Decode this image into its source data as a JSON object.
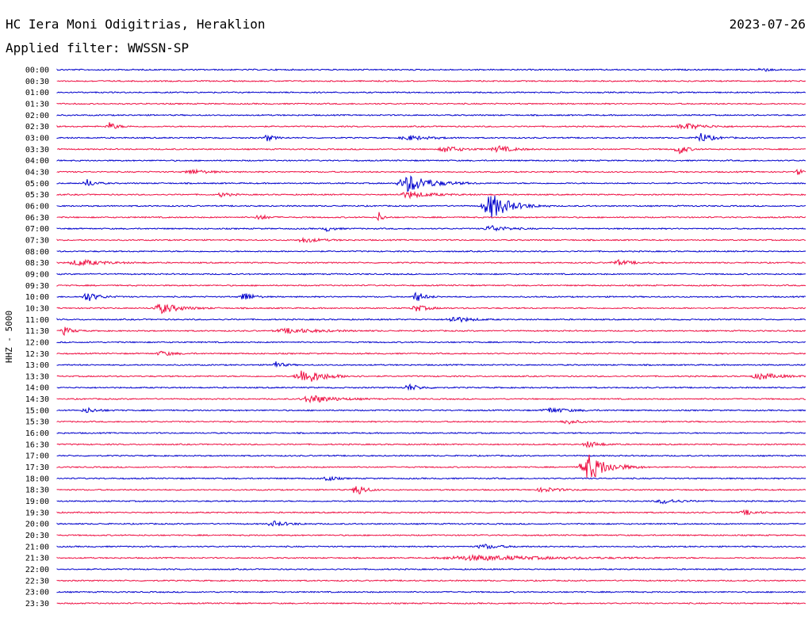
{
  "header": {
    "station": "HC Iera Moni Odigitrias, Heraklion",
    "date": "2023-07-26",
    "filter": "Applied filter: WWSSN-SP"
  },
  "chart_data": {
    "type": "line",
    "title": "HC Iera Moni Odigitrias, Heraklion",
    "subtitle": "Applied filter: WWSSN-SP",
    "ylabel": "HHZ - 5000",
    "colors": {
      "a": "#0000cc",
      "b": "#ee1144"
    },
    "rows": [
      "00:00",
      "00:30",
      "01:00",
      "01:30",
      "02:00",
      "02:30",
      "03:00",
      "03:30",
      "04:00",
      "04:30",
      "05:00",
      "05:30",
      "06:00",
      "06:30",
      "07:00",
      "07:30",
      "08:00",
      "08:30",
      "09:00",
      "09:30",
      "10:00",
      "10:30",
      "11:00",
      "11:30",
      "12:00",
      "12:30",
      "13:00",
      "13:30",
      "14:00",
      "14:30",
      "15:00",
      "15:30",
      "16:00",
      "16:30",
      "17:00",
      "17:30",
      "18:00",
      "18:30",
      "19:00",
      "19:30",
      "20:00",
      "20:30",
      "21:00",
      "21:30",
      "22:00",
      "22:30",
      "23:00",
      "23:30"
    ],
    "events": [
      {
        "row": "00:00",
        "pos": 0.94,
        "amp": 3,
        "dur": 0.02
      },
      {
        "row": "02:30",
        "pos": 0.07,
        "amp": 5,
        "dur": 0.02
      },
      {
        "row": "02:30",
        "pos": 0.84,
        "amp": 4,
        "dur": 0.05
      },
      {
        "row": "03:00",
        "pos": 0.28,
        "amp": 4,
        "dur": 0.02
      },
      {
        "row": "03:00",
        "pos": 0.47,
        "amp": 3,
        "dur": 0.05
      },
      {
        "row": "03:00",
        "pos": 0.86,
        "amp": 6,
        "dur": 0.03
      },
      {
        "row": "03:30",
        "pos": 0.52,
        "amp": 4,
        "dur": 0.04
      },
      {
        "row": "03:30",
        "pos": 0.59,
        "amp": 4,
        "dur": 0.04
      },
      {
        "row": "03:30",
        "pos": 0.83,
        "amp": 7,
        "dur": 0.02
      },
      {
        "row": "04:30",
        "pos": 0.18,
        "amp": 3,
        "dur": 0.04
      },
      {
        "row": "04:30",
        "pos": 0.99,
        "amp": 5,
        "dur": 0.01
      },
      {
        "row": "05:00",
        "pos": 0.04,
        "amp": 5,
        "dur": 0.02
      },
      {
        "row": "05:00",
        "pos": 0.47,
        "amp": 11,
        "dur": 0.06
      },
      {
        "row": "05:30",
        "pos": 0.22,
        "amp": 3,
        "dur": 0.02
      },
      {
        "row": "05:30",
        "pos": 0.47,
        "amp": 4,
        "dur": 0.06
      },
      {
        "row": "06:00",
        "pos": 0.58,
        "amp": 16,
        "dur": 0.05
      },
      {
        "row": "06:30",
        "pos": 0.27,
        "amp": 4,
        "dur": 0.02
      },
      {
        "row": "06:30",
        "pos": 0.43,
        "amp": 7,
        "dur": 0.01
      },
      {
        "row": "07:00",
        "pos": 0.36,
        "amp": 3,
        "dur": 0.02
      },
      {
        "row": "07:00",
        "pos": 0.58,
        "amp": 4,
        "dur": 0.04
      },
      {
        "row": "07:30",
        "pos": 0.33,
        "amp": 3,
        "dur": 0.04
      },
      {
        "row": "08:30",
        "pos": 0.03,
        "amp": 4,
        "dur": 0.06
      },
      {
        "row": "08:30",
        "pos": 0.75,
        "amp": 3,
        "dur": 0.04
      },
      {
        "row": "10:00",
        "pos": 0.04,
        "amp": 6,
        "dur": 0.03
      },
      {
        "row": "10:00",
        "pos": 0.25,
        "amp": 7,
        "dur": 0.02
      },
      {
        "row": "10:00",
        "pos": 0.48,
        "amp": 7,
        "dur": 0.02
      },
      {
        "row": "10:30",
        "pos": 0.14,
        "amp": 6,
        "dur": 0.05
      },
      {
        "row": "10:30",
        "pos": 0.48,
        "amp": 4,
        "dur": 0.03
      },
      {
        "row": "11:00",
        "pos": 0.53,
        "amp": 4,
        "dur": 0.04
      },
      {
        "row": "11:30",
        "pos": 0.01,
        "amp": 5,
        "dur": 0.02
      },
      {
        "row": "11:30",
        "pos": 0.31,
        "amp": 3,
        "dur": 0.08
      },
      {
        "row": "12:30",
        "pos": 0.14,
        "amp": 3,
        "dur": 0.03
      },
      {
        "row": "13:00",
        "pos": 0.29,
        "amp": 5,
        "dur": 0.02
      },
      {
        "row": "13:30",
        "pos": 0.33,
        "amp": 10,
        "dur": 0.05
      },
      {
        "row": "13:30",
        "pos": 0.94,
        "amp": 4,
        "dur": 0.05
      },
      {
        "row": "14:00",
        "pos": 0.47,
        "amp": 4,
        "dur": 0.03
      },
      {
        "row": "14:30",
        "pos": 0.34,
        "amp": 5,
        "dur": 0.06
      },
      {
        "row": "15:00",
        "pos": 0.04,
        "amp": 3,
        "dur": 0.03
      },
      {
        "row": "15:00",
        "pos": 0.66,
        "amp": 3,
        "dur": 0.05
      },
      {
        "row": "15:30",
        "pos": 0.68,
        "amp": 3,
        "dur": 0.03
      },
      {
        "row": "16:30",
        "pos": 0.71,
        "amp": 4,
        "dur": 0.03
      },
      {
        "row": "17:30",
        "pos": 0.71,
        "amp": 17,
        "dur": 0.05
      },
      {
        "row": "18:00",
        "pos": 0.36,
        "amp": 4,
        "dur": 0.02
      },
      {
        "row": "18:30",
        "pos": 0.4,
        "amp": 9,
        "dur": 0.02
      },
      {
        "row": "18:30",
        "pos": 0.65,
        "amp": 3,
        "dur": 0.04
      },
      {
        "row": "19:00",
        "pos": 0.81,
        "amp": 3,
        "dur": 0.04
      },
      {
        "row": "19:30",
        "pos": 0.92,
        "amp": 3,
        "dur": 0.03
      },
      {
        "row": "20:00",
        "pos": 0.29,
        "amp": 3,
        "dur": 0.04
      },
      {
        "row": "21:00",
        "pos": 0.57,
        "amp": 3,
        "dur": 0.04
      },
      {
        "row": "21:30",
        "pos": 0.56,
        "amp": 3,
        "dur": 0.2
      }
    ]
  }
}
